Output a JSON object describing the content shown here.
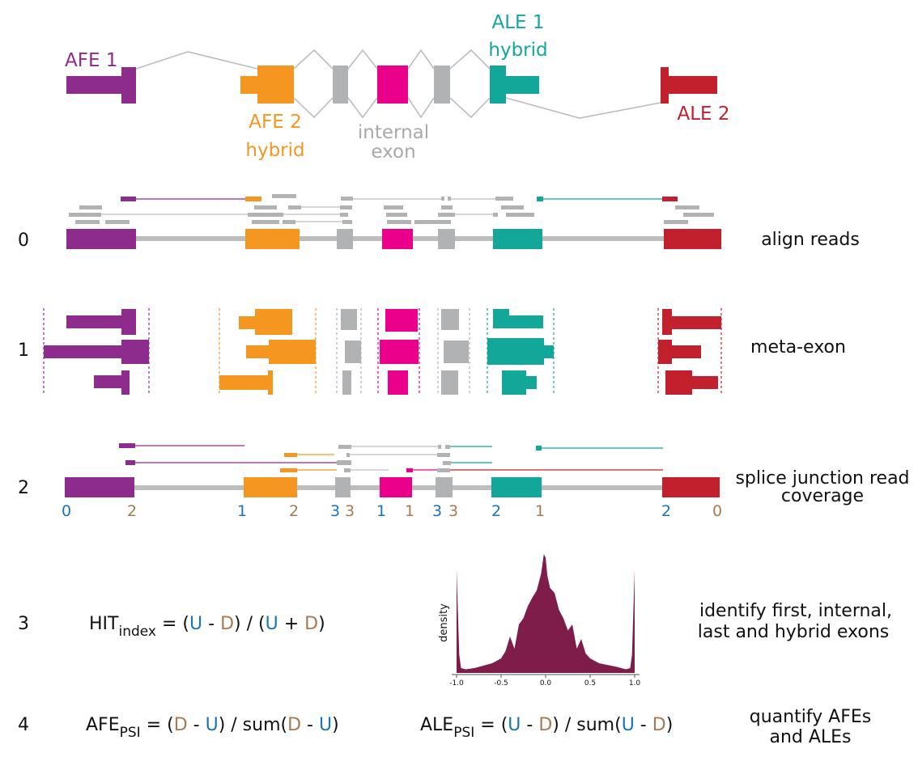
{
  "colors": {
    "purple": "#8e2c8e",
    "orange": "#f4961f",
    "gray": "#b1b2b4",
    "magenta": "#ea008b",
    "teal": "#13a79a",
    "red": "#c3202e",
    "blue": "#1a74b8",
    "brown": "#a67a52",
    "density": "#7e1c4a",
    "intron": "#bcbdbf",
    "text": "#111111"
  },
  "top_model": {
    "afe1": "AFE 1",
    "afe2_line1": "AFE 2",
    "afe2_line2": "hybrid",
    "internal_line1": "internal",
    "internal_line2": "exon",
    "ale1_line1": "ALE 1",
    "ale1_line2": "hybrid",
    "ale2": "ALE 2"
  },
  "steps": [
    {
      "number": "0",
      "label": "align reads"
    },
    {
      "number": "1",
      "label": "meta-exon"
    },
    {
      "number": "2",
      "label_line1": "splice junction read",
      "label_line2": "coverage"
    },
    {
      "number": "3",
      "label_line1": "identify first, internal,",
      "label_line2": "last and hybrid exons"
    },
    {
      "number": "4",
      "label_line1": "quantify AFEs",
      "label_line2": "and ALEs"
    }
  ],
  "coverage_counts": [
    {
      "value": "0",
      "kind": "U"
    },
    {
      "value": "2",
      "kind": "D"
    },
    {
      "value": "1",
      "kind": "U"
    },
    {
      "value": "2",
      "kind": "D"
    },
    {
      "value": "3",
      "kind": "U"
    },
    {
      "value": "3",
      "kind": "D"
    },
    {
      "value": "1",
      "kind": "U"
    },
    {
      "value": "1",
      "kind": "D"
    },
    {
      "value": "3",
      "kind": "U"
    },
    {
      "value": "3",
      "kind": "D"
    },
    {
      "value": "2",
      "kind": "U"
    },
    {
      "value": "1",
      "kind": "D"
    },
    {
      "value": "2",
      "kind": "U"
    },
    {
      "value": "0",
      "kind": "D"
    }
  ],
  "formulas": {
    "hit": {
      "name": "HIT",
      "sub": "index",
      "p1": " = (",
      "u1": "U",
      "p2": " - ",
      "d1": "D",
      "p3": ") / (",
      "u2": "U",
      "p4": " + ",
      "d2": "D",
      "p5": ")"
    },
    "afe": {
      "name": "AFE",
      "sub": "PSI",
      "p1": " = (",
      "a1": "D",
      "p2": " - ",
      "a2": "U",
      "p3": ") / sum(",
      "a3": "D",
      "p4": " - ",
      "a4": "U",
      "p5": ")"
    },
    "ale": {
      "name": "ALE",
      "sub": "PSI",
      "p1": " = (",
      "a1": "U",
      "p2": " - ",
      "a2": "D",
      "p3": ") / sum(",
      "a3": "U",
      "p4": " - ",
      "a4": "D",
      "p5": ")"
    }
  },
  "chart_data": {
    "type": "area",
    "ylabel": "density",
    "xlabel": "",
    "xlim": [
      -1.0,
      1.0
    ],
    "ticks": [
      "-1.0",
      "-0.5",
      "0.0",
      "0.5",
      "1.0"
    ],
    "x": [
      -1.0,
      -0.97,
      -0.95,
      -0.9,
      -0.8,
      -0.6,
      -0.5,
      -0.45,
      -0.4,
      -0.35,
      -0.3,
      -0.25,
      -0.2,
      -0.15,
      -0.1,
      -0.05,
      -0.02,
      0.0,
      0.02,
      0.05,
      0.1,
      0.15,
      0.2,
      0.25,
      0.3,
      0.35,
      0.4,
      0.45,
      0.5,
      0.6,
      0.8,
      0.9,
      0.95,
      0.97,
      1.0
    ],
    "y": [
      0.85,
      0.15,
      0.04,
      0.03,
      0.04,
      0.08,
      0.12,
      0.18,
      0.3,
      0.2,
      0.4,
      0.45,
      0.55,
      0.62,
      0.68,
      0.82,
      0.98,
      0.95,
      0.8,
      0.7,
      0.66,
      0.52,
      0.45,
      0.35,
      0.4,
      0.2,
      0.28,
      0.16,
      0.12,
      0.08,
      0.05,
      0.03,
      0.04,
      0.15,
      0.85
    ]
  }
}
